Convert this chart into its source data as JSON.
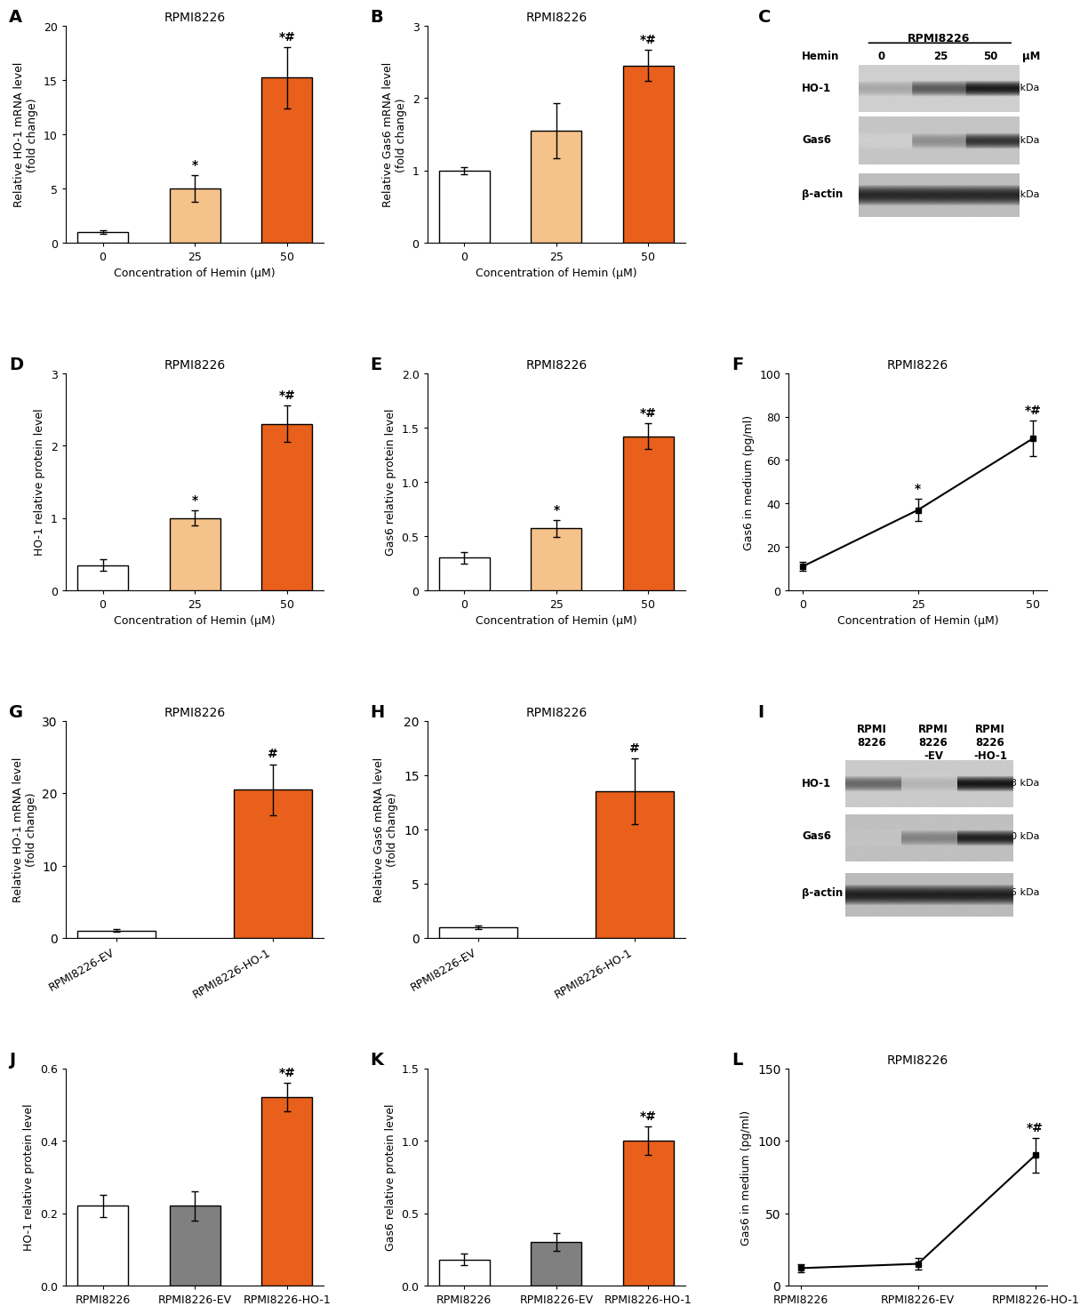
{
  "panel_A": {
    "title": "RPMI8226",
    "xlabel": "Concentration of Hemin (μM)",
    "ylabel": "Relative HO-1 mRNA level\n(fold change)",
    "categories": [
      "0",
      "25",
      "50"
    ],
    "values": [
      1.0,
      5.0,
      15.2
    ],
    "errors": [
      0.15,
      1.2,
      2.8
    ],
    "colors": [
      "#ffffff",
      "#f5c28a",
      "#e8601c"
    ],
    "annotations": [
      "",
      "*",
      "*#"
    ],
    "ylim": [
      0,
      20
    ],
    "yticks": [
      0,
      5,
      10,
      15,
      20
    ]
  },
  "panel_B": {
    "title": "RPMI8226",
    "xlabel": "Concentration of Hemin (μM)",
    "ylabel": "Relative Gas6 mRNA level\n(fold change)",
    "categories": [
      "0",
      "25",
      "50"
    ],
    "values": [
      1.0,
      1.55,
      2.45
    ],
    "errors": [
      0.05,
      0.38,
      0.22
    ],
    "colors": [
      "#ffffff",
      "#f5c28a",
      "#e8601c"
    ],
    "annotations": [
      "",
      "",
      "*#"
    ],
    "ylim": [
      0,
      3
    ],
    "yticks": [
      0,
      1,
      2,
      3
    ]
  },
  "panel_D": {
    "title": "RPMI8226",
    "xlabel": "Concentration of Hemin (μM)",
    "ylabel": "HO-1 relative protein level",
    "categories": [
      "0",
      "25",
      "50"
    ],
    "values": [
      0.35,
      1.0,
      2.3
    ],
    "errors": [
      0.08,
      0.1,
      0.25
    ],
    "colors": [
      "#ffffff",
      "#f5c28a",
      "#e8601c"
    ],
    "annotations": [
      "",
      "*",
      "*#"
    ],
    "ylim": [
      0,
      3
    ],
    "yticks": [
      0,
      1,
      2,
      3
    ]
  },
  "panel_E": {
    "title": "RPMI8226",
    "xlabel": "Concentration of Hemin (μM)",
    "ylabel": "Gas6 relative protein level",
    "categories": [
      "0",
      "25",
      "50"
    ],
    "values": [
      0.3,
      0.57,
      1.42
    ],
    "errors": [
      0.05,
      0.08,
      0.12
    ],
    "colors": [
      "#ffffff",
      "#f5c28a",
      "#e8601c"
    ],
    "annotations": [
      "",
      "*",
      "*#"
    ],
    "ylim": [
      0,
      2.0
    ],
    "yticks": [
      0,
      0.5,
      1.0,
      1.5,
      2.0
    ]
  },
  "panel_F": {
    "title": "RPMI8226",
    "xlabel": "Concentration of Hemin (μM)",
    "ylabel": "Gas6 in medium (pg/ml)",
    "categories": [
      0,
      25,
      50
    ],
    "values": [
      11.0,
      37.0,
      70.0
    ],
    "errors": [
      2.0,
      5.0,
      8.0
    ],
    "annotations": [
      "",
      "*",
      "*#"
    ],
    "ylim": [
      0,
      100
    ],
    "yticks": [
      0,
      20,
      40,
      60,
      80,
      100
    ]
  },
  "panel_G": {
    "title": "RPMI8226",
    "xlabel": "",
    "ylabel": "Relative HO-1 mRNA level\n(fold change)",
    "categories": [
      "RPMI8226-EV",
      "RPMI8226-HO-1"
    ],
    "values": [
      1.0,
      20.5
    ],
    "errors": [
      0.2,
      3.5
    ],
    "colors": [
      "#ffffff",
      "#e8601c"
    ],
    "annotations": [
      "",
      "#"
    ],
    "ylim": [
      0,
      30
    ],
    "yticks": [
      0,
      10,
      20,
      30
    ]
  },
  "panel_H": {
    "title": "RPMI8226",
    "xlabel": "",
    "ylabel": "Relative Gas6 mRNA level\n(fold change)",
    "categories": [
      "RPMI8226-EV",
      "RPMI8226-HO-1"
    ],
    "values": [
      1.0,
      13.5
    ],
    "errors": [
      0.15,
      3.0
    ],
    "colors": [
      "#ffffff",
      "#e8601c"
    ],
    "annotations": [
      "",
      "#"
    ],
    "ylim": [
      0,
      20
    ],
    "yticks": [
      0,
      5,
      10,
      15,
      20
    ]
  },
  "panel_J": {
    "title": "",
    "xlabel": "",
    "ylabel": "HO-1 relative protein level",
    "categories": [
      "RPMI8226",
      "RPMI8226-EV",
      "RPMI8226-HO-1"
    ],
    "values": [
      0.22,
      0.22,
      0.52
    ],
    "errors": [
      0.03,
      0.04,
      0.04
    ],
    "colors": [
      "#ffffff",
      "#808080",
      "#e8601c"
    ],
    "annotations": [
      "",
      "",
      "*#"
    ],
    "ylim": [
      0,
      0.6
    ],
    "yticks": [
      0.0,
      0.2,
      0.4,
      0.6
    ]
  },
  "panel_K": {
    "title": "",
    "xlabel": "",
    "ylabel": "Gas6 relative protein level",
    "categories": [
      "RPMI8226",
      "RPMI8226-EV",
      "RPMI8226-HO-1"
    ],
    "values": [
      0.18,
      0.3,
      1.0
    ],
    "errors": [
      0.04,
      0.06,
      0.1
    ],
    "colors": [
      "#ffffff",
      "#808080",
      "#e8601c"
    ],
    "annotations": [
      "",
      "",
      "*#"
    ],
    "ylim": [
      0,
      1.5
    ],
    "yticks": [
      0.0,
      0.5,
      1.0,
      1.5
    ]
  },
  "panel_L": {
    "title": "RPMI8226",
    "xlabel": "",
    "ylabel": "Gas6 in medium (pg/ml)",
    "categories": [
      "RPMI8226",
      "RPMI8226-EV",
      "RPMI8226-HO-1"
    ],
    "values": [
      12.0,
      15.0,
      90.0
    ],
    "errors": [
      3.0,
      4.0,
      12.0
    ],
    "annotations": [
      "",
      "",
      "*#"
    ],
    "ylim": [
      0,
      150
    ],
    "yticks": [
      0,
      50,
      100,
      150
    ]
  },
  "panel_label_fontsize": 14,
  "title_fontsize": 10,
  "axis_label_fontsize": 9,
  "tick_fontsize": 9,
  "annotation_fontsize": 10,
  "bar_edgecolor": "#000000",
  "bar_linewidth": 1.0,
  "error_capsize": 3,
  "error_linewidth": 1.0
}
